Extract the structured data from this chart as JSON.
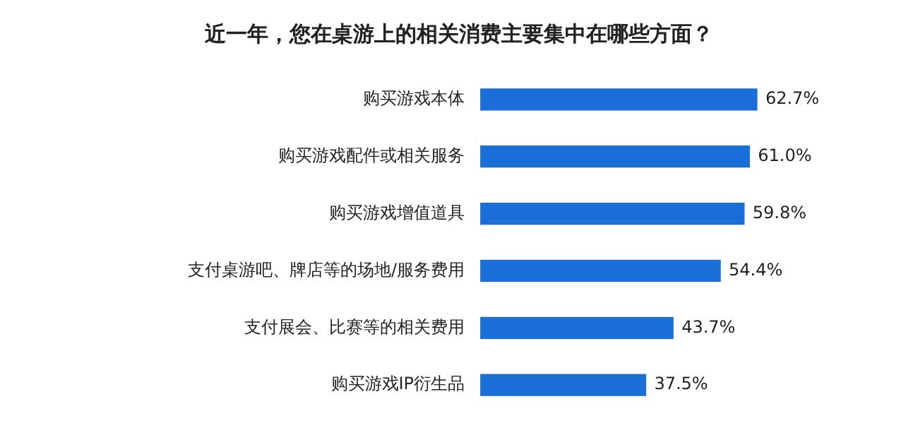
{
  "chart_data": {
    "type": "bar",
    "orientation": "horizontal",
    "title": "近一年，您在桌游上的相关消费主要集中在哪些方面？",
    "categories": [
      "购买游戏本体",
      "购买游戏配件或相关服务",
      "购买游戏增值道具",
      "支付桌游吧、牌店等的场地/服务费用",
      "支付展会、比赛等的相关费用",
      "购买游戏IP衍生品"
    ],
    "values": [
      62.7,
      61.0,
      59.8,
      54.4,
      43.7,
      37.5
    ],
    "value_labels": [
      "62.7%",
      "61.0%",
      "59.8%",
      "54.4%",
      "43.7%",
      "37.5%"
    ],
    "color": "#1a6ed8"
  }
}
